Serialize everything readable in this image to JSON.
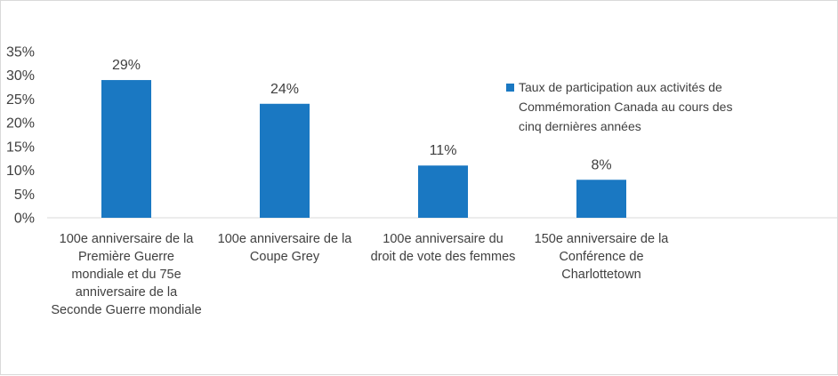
{
  "chart_data": {
    "type": "bar",
    "categories": [
      [
        "100e anniversaire de la",
        "Première Guerre",
        "mondiale et du 75e",
        "anniversaire de la",
        "Seconde Guerre mondiale"
      ],
      [
        "100e anniversaire de la",
        "Coupe Grey"
      ],
      [
        "100e anniversaire du",
        "droit de vote des femmes"
      ],
      [
        "150e anniversaire de la",
        "Conférence de",
        "Charlottetown"
      ]
    ],
    "series": [
      {
        "name": [
          "Taux de participation aux activités de",
          "Commémoration Canada au cours des",
          "cinq dernières années"
        ],
        "values": [
          29,
          24,
          11,
          8
        ],
        "color": "#1a78c2"
      }
    ],
    "data_labels": [
      "29%",
      "24%",
      "11%",
      "8%"
    ],
    "y_ticks": [
      "0%",
      "5%",
      "10%",
      "15%",
      "20%",
      "25%",
      "30%",
      "35%"
    ],
    "ylim": [
      0,
      35
    ],
    "legend_position": "right",
    "grid": false
  }
}
